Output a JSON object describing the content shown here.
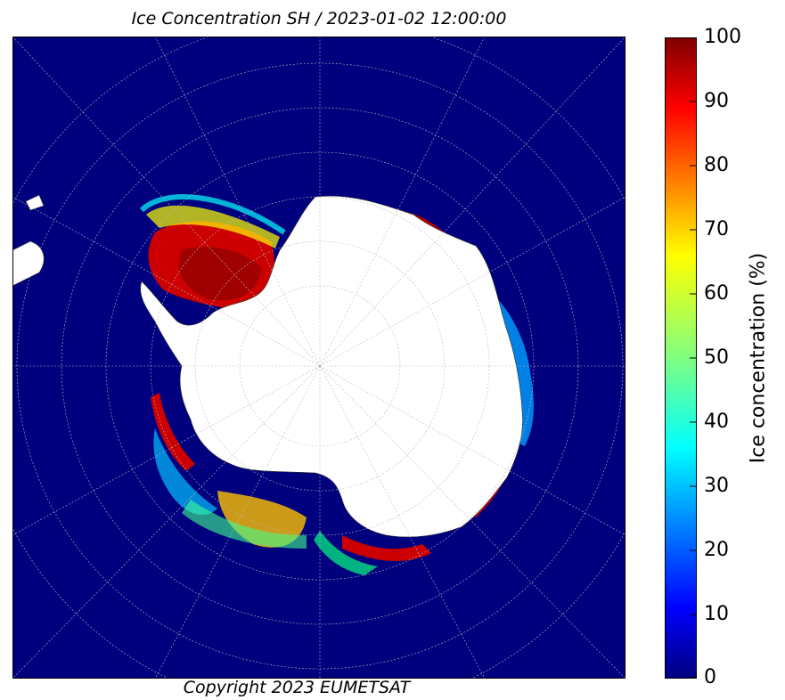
{
  "title": "Ice Concentration SH / 2023-01-02 12:00:00",
  "copyright": "Copyright 2023 EUMETSAT",
  "colorbar": {
    "label": "Ice concentration (%)",
    "ticks": [
      "100",
      "90",
      "80",
      "70",
      "60",
      "50",
      "40",
      "30",
      "20",
      "10",
      "0"
    ],
    "colors": [
      "#7f0000",
      "#ff0000",
      "#ff8000",
      "#ffff00",
      "#80ff80",
      "#00ffff",
      "#0080ff",
      "#0000ff",
      "#00007f"
    ]
  },
  "map": {
    "ocean_color": "#00007f",
    "land_color": "#ffffff"
  }
}
